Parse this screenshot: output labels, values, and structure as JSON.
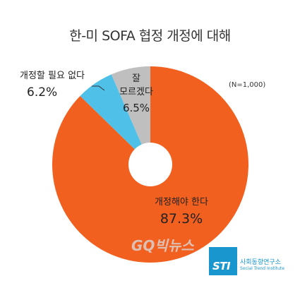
{
  "chart_data": {
    "type": "pie",
    "title": "한-미 SOFA 협정 개정에 대해",
    "note": "(N=1,000)",
    "unit": "%",
    "slices": [
      {
        "label": "개정해야 한다",
        "value": 87.3,
        "display": "87.3%",
        "color": "#f2601f"
      },
      {
        "label": "개정할 필요 없다",
        "value": 6.2,
        "display": "6.2%",
        "color": "#4fc0e8"
      },
      {
        "label": "잘 모르겠다",
        "label_lines": [
          "잘",
          "모르겠다"
        ],
        "value": 6.5,
        "display": "6.5%",
        "color": "#bfbfbf"
      }
    ]
  },
  "branding": {
    "logo_mark": "STI",
    "logo_name": "사회동향연구소",
    "logo_en": "Social Trend Institute",
    "watermark": "GQ빅뉴스"
  }
}
